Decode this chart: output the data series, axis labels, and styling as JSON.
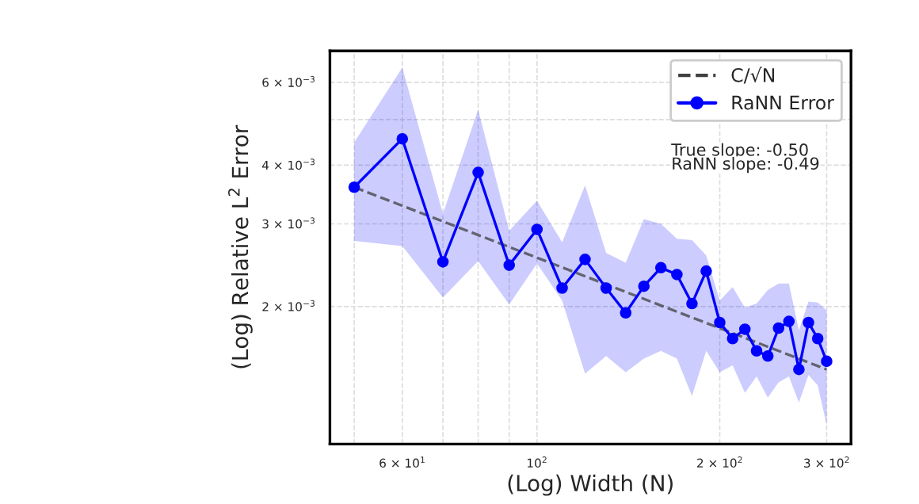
{
  "chart_data": {
    "type": "line",
    "xlabel": "(Log) Width (N)",
    "ylabel": "(Log) Relative L$^{2}$ Error",
    "x": [
      50,
      60,
      70,
      80,
      90,
      100,
      110,
      120,
      130,
      140,
      150,
      160,
      170,
      180,
      190,
      200,
      210,
      220,
      230,
      240,
      250,
      260,
      270,
      280,
      290,
      300
    ],
    "series": [
      {
        "name": "C/√N",
        "type": "line",
        "color": "#404040",
        "line_style": "dashed",
        "marker": "none",
        "x": [
          50,
          300
        ],
        "values": [
          0.00359,
          0.00147
        ]
      },
      {
        "name": "RaNN Error",
        "type": "line",
        "color": "#0000ff",
        "line_style": "solid",
        "marker": "circle",
        "values": [
          0.00359,
          0.00455,
          0.00249,
          0.00386,
          0.00245,
          0.00292,
          0.00219,
          0.00252,
          0.00219,
          0.00194,
          0.00221,
          0.00242,
          0.00234,
          0.00203,
          0.00238,
          0.00185,
          0.00171,
          0.00179,
          0.00161,
          0.00157,
          0.0018,
          0.00186,
          0.00147,
          0.00185,
          0.00171,
          0.00153
        ],
        "lower": [
          0.00276,
          0.00269,
          0.00209,
          0.0025,
          0.00202,
          0.00247,
          0.00206,
          0.00144,
          0.00157,
          0.00145,
          0.00155,
          0.00161,
          0.00155,
          0.00129,
          0.00161,
          0.00145,
          0.0015,
          0.00131,
          0.00142,
          0.00128,
          0.00138,
          0.00142,
          0.00125,
          0.00143,
          0.00136,
          0.00112
        ],
        "upper": [
          0.00447,
          0.00645,
          0.00315,
          0.00525,
          0.0029,
          0.00336,
          0.00274,
          0.00362,
          0.0026,
          0.00248,
          0.00307,
          0.003,
          0.00279,
          0.00277,
          0.00257,
          0.00206,
          0.0022,
          0.00199,
          0.00203,
          0.00217,
          0.00224,
          0.00224,
          0.00178,
          0.00205,
          0.00204,
          0.00196
        ]
      }
    ],
    "log": "xy",
    "xlim": [
      45.6,
      329
    ],
    "ylim": [
      0.00102,
      0.007
    ],
    "xticks": [
      {
        "value": 50,
        "label": null
      },
      {
        "value": 60,
        "label": "6 × 10$^{1}$"
      },
      {
        "value": 70,
        "label": null
      },
      {
        "value": 80,
        "label": null
      },
      {
        "value": 90,
        "label": null
      },
      {
        "value": 100,
        "label": "10$^{2}$"
      },
      {
        "value": 200,
        "label": "2 × 10$^{2}$"
      },
      {
        "value": 300,
        "label": "3 × 10$^{2}$"
      }
    ],
    "yticks": [
      {
        "value": 0.002,
        "label": "2 × 10$^{−3}$"
      },
      {
        "value": 0.003,
        "label": "3 × 10$^{−3}$"
      },
      {
        "value": 0.004,
        "label": "4 × 10$^{−3}$"
      },
      {
        "value": 0.005,
        "label": null
      },
      {
        "value": 0.006,
        "label": "6 × 10$^{−3}$"
      }
    ],
    "grid": true,
    "legend": "top right",
    "annotations": [
      "True slope: -0.50",
      "RaNN slope: -0.49"
    ]
  }
}
